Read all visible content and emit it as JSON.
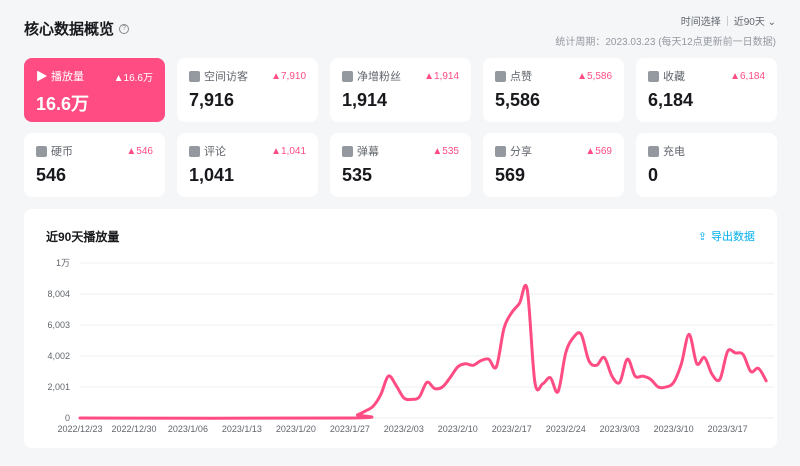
{
  "header": {
    "title": "核心数据概览",
    "help_icon": "question-circle-icon",
    "time_select_label": "时间选择",
    "time_range": "近90天",
    "period": "统计周期：2023.03.23 (每天12点更新前一日数据)"
  },
  "cards": [
    {
      "label": "播放量",
      "value": "16.6万",
      "delta": "▲16.6万",
      "icon": "play-icon",
      "active": true
    },
    {
      "label": "空间访客",
      "value": "7,916",
      "delta": "▲7,910",
      "icon": "user-icon"
    },
    {
      "label": "净增粉丝",
      "value": "1,914",
      "delta": "▲1,914",
      "icon": "user-add-icon"
    },
    {
      "label": "点赞",
      "value": "5,586",
      "delta": "▲5,586",
      "icon": "thumb-up-icon"
    },
    {
      "label": "收藏",
      "value": "6,184",
      "delta": "▲6,184",
      "icon": "star-icon"
    },
    {
      "label": "硬币",
      "value": "546",
      "delta": "▲546",
      "icon": "coin-icon"
    },
    {
      "label": "评论",
      "value": "1,041",
      "delta": "▲1,041",
      "icon": "comment-icon"
    },
    {
      "label": "弹幕",
      "value": "535",
      "delta": "▲535",
      "icon": "danmaku-icon"
    },
    {
      "label": "分享",
      "value": "569",
      "delta": "▲569",
      "icon": "share-icon"
    },
    {
      "label": "充电",
      "value": "0",
      "icon": "battery-icon"
    }
  ],
  "colors": {
    "accent": "#ff4d84",
    "link": "#00aeec"
  },
  "chart": {
    "title": "近90天播放量",
    "export_label": "导出数据",
    "export_icon": "export-icon"
  },
  "chart_data": {
    "type": "line",
    "title": "近90天播放量",
    "ylim": [
      0,
      10000
    ],
    "yticks": [
      {
        "v": 0,
        "label": "0"
      },
      {
        "v": 2001,
        "label": "2,001"
      },
      {
        "v": 4002,
        "label": "4,002"
      },
      {
        "v": 6003,
        "label": "6,003"
      },
      {
        "v": 8004,
        "label": "8,004"
      },
      {
        "v": 10000,
        "label": "1万"
      }
    ],
    "xticks": [
      "2022/12/23",
      "2022/12/30",
      "2023/1/06",
      "2023/1/13",
      "2023/1/20",
      "2023/1/27",
      "2023/2/03",
      "2023/2/10",
      "2023/2/17",
      "2023/2/24",
      "2023/3/03",
      "2023/3/10",
      "2023/3/17"
    ],
    "grid": true,
    "color": "#ff4d84",
    "points": [
      [
        "2022/12/23",
        0
      ],
      [
        "2023/1/27",
        0
      ],
      [
        "2023/1/28",
        200
      ],
      [
        "2023/1/29",
        450
      ],
      [
        "2023/1/30",
        750
      ],
      [
        "2023/1/31",
        1500
      ],
      [
        "2023/2/01",
        2700
      ],
      [
        "2023/2/02",
        2100
      ],
      [
        "2023/2/03",
        1300
      ],
      [
        "2023/2/04",
        1200
      ],
      [
        "2023/2/05",
        1350
      ],
      [
        "2023/2/06",
        2300
      ],
      [
        "2023/2/07",
        1900
      ],
      [
        "2023/2/08",
        2000
      ],
      [
        "2023/2/09",
        2600
      ],
      [
        "2023/2/10",
        3300
      ],
      [
        "2023/2/11",
        3500
      ],
      [
        "2023/2/12",
        3400
      ],
      [
        "2023/2/13",
        3700
      ],
      [
        "2023/2/14",
        3800
      ],
      [
        "2023/2/15",
        3300
      ],
      [
        "2023/2/16",
        5800
      ],
      [
        "2023/2/17",
        6800
      ],
      [
        "2023/2/18",
        7400
      ],
      [
        "2023/2/19",
        8300
      ],
      [
        "2023/2/20",
        2300
      ],
      [
        "2023/2/21",
        2200
      ],
      [
        "2023/2/22",
        2600
      ],
      [
        "2023/2/23",
        1700
      ],
      [
        "2023/2/24",
        4200
      ],
      [
        "2023/2/25",
        5200
      ],
      [
        "2023/2/26",
        5400
      ],
      [
        "2023/2/27",
        3700
      ],
      [
        "2023/2/28",
        3400
      ],
      [
        "2023/3/01",
        3900
      ],
      [
        "2023/3/02",
        2700
      ],
      [
        "2023/3/03",
        2300
      ],
      [
        "2023/3/04",
        3800
      ],
      [
        "2023/3/05",
        2700
      ],
      [
        "2023/3/06",
        2700
      ],
      [
        "2023/3/07",
        2500
      ],
      [
        "2023/3/08",
        2000
      ],
      [
        "2023/3/09",
        2000
      ],
      [
        "2023/3/10",
        2300
      ],
      [
        "2023/3/11",
        3500
      ],
      [
        "2023/3/12",
        5400
      ],
      [
        "2023/3/13",
        3500
      ],
      [
        "2023/3/14",
        3900
      ],
      [
        "2023/3/15",
        2800
      ],
      [
        "2023/3/16",
        2500
      ],
      [
        "2023/3/17",
        4300
      ],
      [
        "2023/3/18",
        4200
      ],
      [
        "2023/3/19",
        4100
      ],
      [
        "2023/3/20",
        3000
      ],
      [
        "2023/3/21",
        3200
      ],
      [
        "2023/3/22",
        2400
      ]
    ]
  }
}
